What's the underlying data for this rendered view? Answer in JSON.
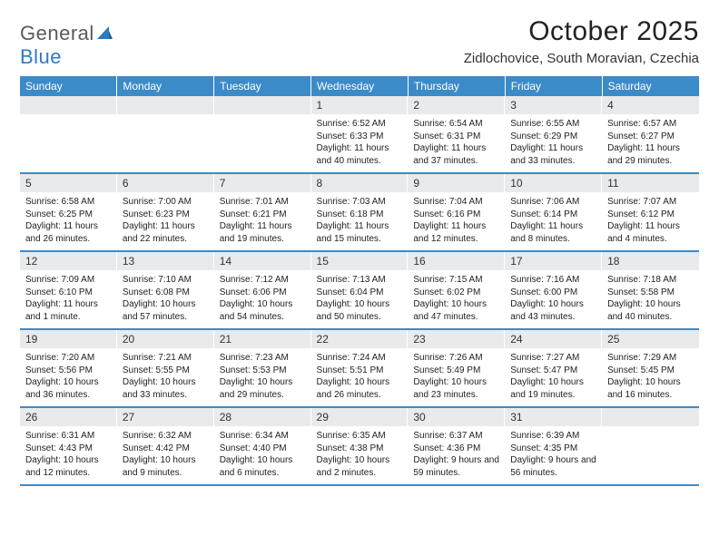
{
  "logo": {
    "text_gray": "General",
    "text_blue": "Blue"
  },
  "header": {
    "month_title": "October 2025",
    "location": "Zidlochovice, South Moravian, Czechia"
  },
  "colors": {
    "header_bg": "#3b8bc9",
    "daynum_bg": "#e9eaeb",
    "rule": "#3b8bc9"
  },
  "weekdays": [
    "Sunday",
    "Monday",
    "Tuesday",
    "Wednesday",
    "Thursday",
    "Friday",
    "Saturday"
  ],
  "weeks": [
    [
      {
        "n": "",
        "sr": "",
        "ss": "",
        "dl": ""
      },
      {
        "n": "",
        "sr": "",
        "ss": "",
        "dl": ""
      },
      {
        "n": "",
        "sr": "",
        "ss": "",
        "dl": ""
      },
      {
        "n": "1",
        "sr": "Sunrise: 6:52 AM",
        "ss": "Sunset: 6:33 PM",
        "dl": "Daylight: 11 hours and 40 minutes."
      },
      {
        "n": "2",
        "sr": "Sunrise: 6:54 AM",
        "ss": "Sunset: 6:31 PM",
        "dl": "Daylight: 11 hours and 37 minutes."
      },
      {
        "n": "3",
        "sr": "Sunrise: 6:55 AM",
        "ss": "Sunset: 6:29 PM",
        "dl": "Daylight: 11 hours and 33 minutes."
      },
      {
        "n": "4",
        "sr": "Sunrise: 6:57 AM",
        "ss": "Sunset: 6:27 PM",
        "dl": "Daylight: 11 hours and 29 minutes."
      }
    ],
    [
      {
        "n": "5",
        "sr": "Sunrise: 6:58 AM",
        "ss": "Sunset: 6:25 PM",
        "dl": "Daylight: 11 hours and 26 minutes."
      },
      {
        "n": "6",
        "sr": "Sunrise: 7:00 AM",
        "ss": "Sunset: 6:23 PM",
        "dl": "Daylight: 11 hours and 22 minutes."
      },
      {
        "n": "7",
        "sr": "Sunrise: 7:01 AM",
        "ss": "Sunset: 6:21 PM",
        "dl": "Daylight: 11 hours and 19 minutes."
      },
      {
        "n": "8",
        "sr": "Sunrise: 7:03 AM",
        "ss": "Sunset: 6:18 PM",
        "dl": "Daylight: 11 hours and 15 minutes."
      },
      {
        "n": "9",
        "sr": "Sunrise: 7:04 AM",
        "ss": "Sunset: 6:16 PM",
        "dl": "Daylight: 11 hours and 12 minutes."
      },
      {
        "n": "10",
        "sr": "Sunrise: 7:06 AM",
        "ss": "Sunset: 6:14 PM",
        "dl": "Daylight: 11 hours and 8 minutes."
      },
      {
        "n": "11",
        "sr": "Sunrise: 7:07 AM",
        "ss": "Sunset: 6:12 PM",
        "dl": "Daylight: 11 hours and 4 minutes."
      }
    ],
    [
      {
        "n": "12",
        "sr": "Sunrise: 7:09 AM",
        "ss": "Sunset: 6:10 PM",
        "dl": "Daylight: 11 hours and 1 minute."
      },
      {
        "n": "13",
        "sr": "Sunrise: 7:10 AM",
        "ss": "Sunset: 6:08 PM",
        "dl": "Daylight: 10 hours and 57 minutes."
      },
      {
        "n": "14",
        "sr": "Sunrise: 7:12 AM",
        "ss": "Sunset: 6:06 PM",
        "dl": "Daylight: 10 hours and 54 minutes."
      },
      {
        "n": "15",
        "sr": "Sunrise: 7:13 AM",
        "ss": "Sunset: 6:04 PM",
        "dl": "Daylight: 10 hours and 50 minutes."
      },
      {
        "n": "16",
        "sr": "Sunrise: 7:15 AM",
        "ss": "Sunset: 6:02 PM",
        "dl": "Daylight: 10 hours and 47 minutes."
      },
      {
        "n": "17",
        "sr": "Sunrise: 7:16 AM",
        "ss": "Sunset: 6:00 PM",
        "dl": "Daylight: 10 hours and 43 minutes."
      },
      {
        "n": "18",
        "sr": "Sunrise: 7:18 AM",
        "ss": "Sunset: 5:58 PM",
        "dl": "Daylight: 10 hours and 40 minutes."
      }
    ],
    [
      {
        "n": "19",
        "sr": "Sunrise: 7:20 AM",
        "ss": "Sunset: 5:56 PM",
        "dl": "Daylight: 10 hours and 36 minutes."
      },
      {
        "n": "20",
        "sr": "Sunrise: 7:21 AM",
        "ss": "Sunset: 5:55 PM",
        "dl": "Daylight: 10 hours and 33 minutes."
      },
      {
        "n": "21",
        "sr": "Sunrise: 7:23 AM",
        "ss": "Sunset: 5:53 PM",
        "dl": "Daylight: 10 hours and 29 minutes."
      },
      {
        "n": "22",
        "sr": "Sunrise: 7:24 AM",
        "ss": "Sunset: 5:51 PM",
        "dl": "Daylight: 10 hours and 26 minutes."
      },
      {
        "n": "23",
        "sr": "Sunrise: 7:26 AM",
        "ss": "Sunset: 5:49 PM",
        "dl": "Daylight: 10 hours and 23 minutes."
      },
      {
        "n": "24",
        "sr": "Sunrise: 7:27 AM",
        "ss": "Sunset: 5:47 PM",
        "dl": "Daylight: 10 hours and 19 minutes."
      },
      {
        "n": "25",
        "sr": "Sunrise: 7:29 AM",
        "ss": "Sunset: 5:45 PM",
        "dl": "Daylight: 10 hours and 16 minutes."
      }
    ],
    [
      {
        "n": "26",
        "sr": "Sunrise: 6:31 AM",
        "ss": "Sunset: 4:43 PM",
        "dl": "Daylight: 10 hours and 12 minutes."
      },
      {
        "n": "27",
        "sr": "Sunrise: 6:32 AM",
        "ss": "Sunset: 4:42 PM",
        "dl": "Daylight: 10 hours and 9 minutes."
      },
      {
        "n": "28",
        "sr": "Sunrise: 6:34 AM",
        "ss": "Sunset: 4:40 PM",
        "dl": "Daylight: 10 hours and 6 minutes."
      },
      {
        "n": "29",
        "sr": "Sunrise: 6:35 AM",
        "ss": "Sunset: 4:38 PM",
        "dl": "Daylight: 10 hours and 2 minutes."
      },
      {
        "n": "30",
        "sr": "Sunrise: 6:37 AM",
        "ss": "Sunset: 4:36 PM",
        "dl": "Daylight: 9 hours and 59 minutes."
      },
      {
        "n": "31",
        "sr": "Sunrise: 6:39 AM",
        "ss": "Sunset: 4:35 PM",
        "dl": "Daylight: 9 hours and 56 minutes."
      },
      {
        "n": "",
        "sr": "",
        "ss": "",
        "dl": ""
      }
    ]
  ]
}
